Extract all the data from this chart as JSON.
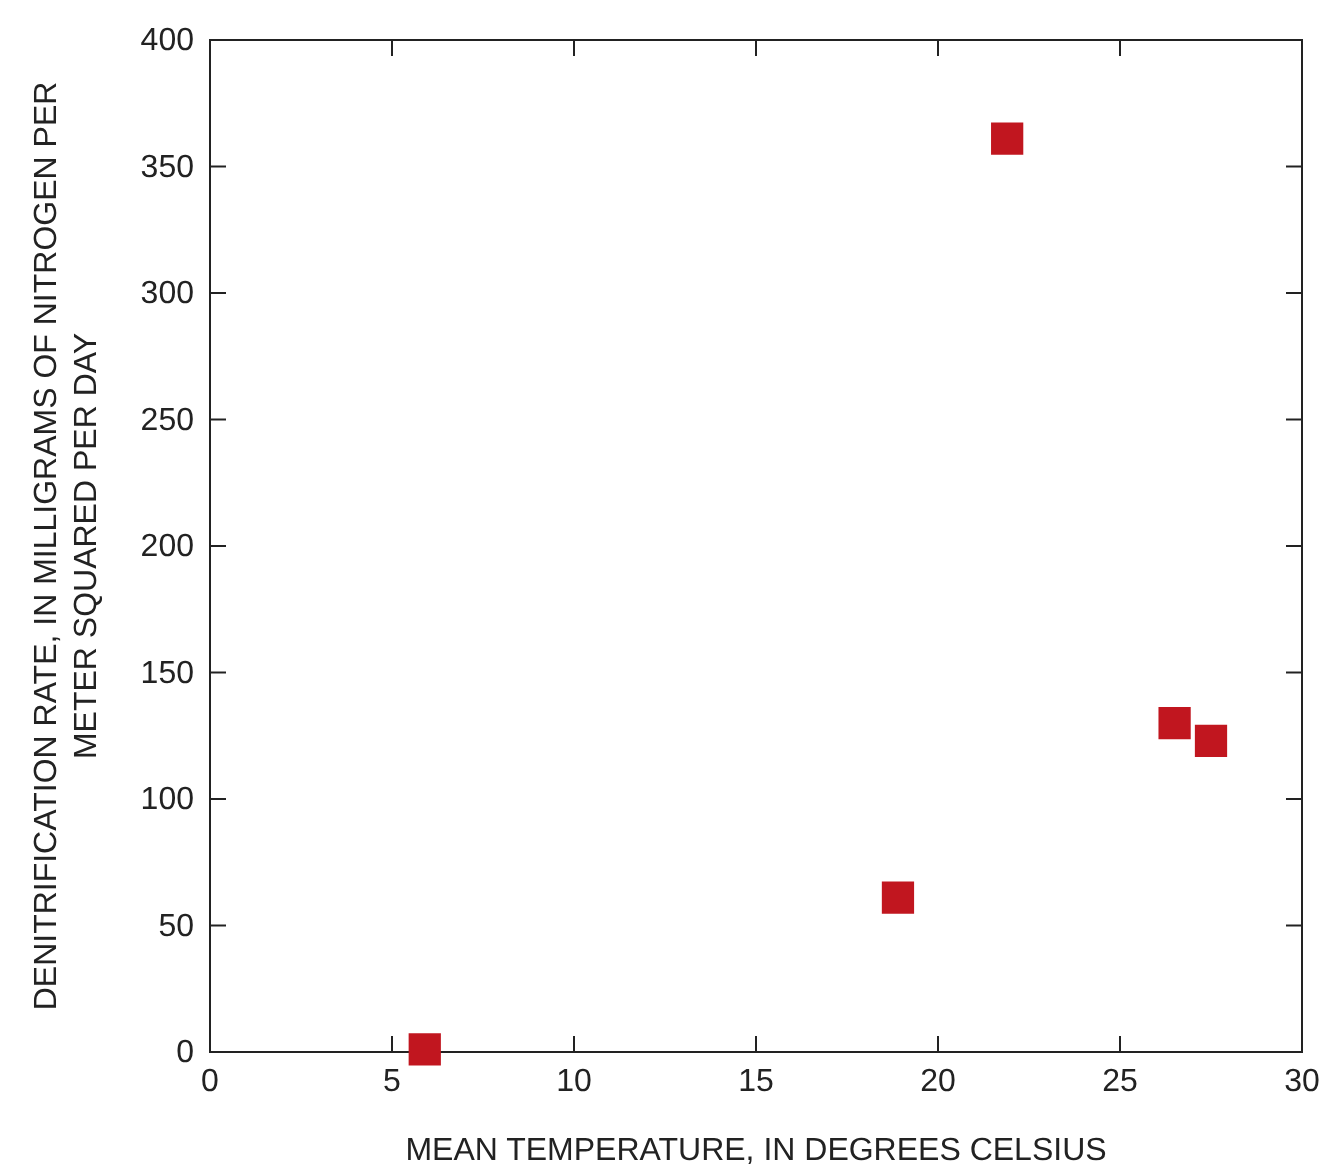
{
  "chart_data": {
    "type": "scatter",
    "xlabel": "MEAN TEMPERATURE, IN DEGREES CELSIUS",
    "ylabel": "DENITRIFICATION RATE, IN MILLIGRAMS OF NITROGEN PER METER SQUARED PER DAY",
    "x": [
      5.9,
      18.9,
      21.9,
      26.5,
      27.5
    ],
    "series": [
      {
        "color": "#c1161f",
        "values": [
          1,
          61,
          361,
          130,
          123
        ]
      }
    ],
    "xlim": [
      0,
      30
    ],
    "xticks": [
      0,
      5,
      10,
      15,
      20,
      25,
      30
    ],
    "ylim": [
      0,
      400
    ],
    "yticks": [
      0,
      50,
      100,
      150,
      200,
      250,
      300,
      350,
      400
    ],
    "marker": "square",
    "grid": false
  }
}
